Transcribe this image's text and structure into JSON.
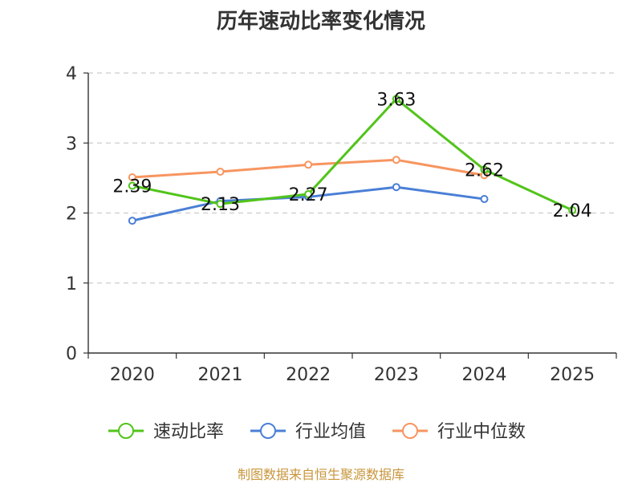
{
  "chart_data": {
    "type": "line",
    "title": "历年速动比率变化情况",
    "categories": [
      "2020",
      "2021",
      "2022",
      "2023",
      "2024",
      "2025"
    ],
    "ylim": [
      0,
      4
    ],
    "yticks": [
      0,
      1,
      2,
      3,
      4
    ],
    "grid": true,
    "legend_position": "bottom",
    "series": [
      {
        "name": "速动比率",
        "color": "#52c41a",
        "values": [
          2.39,
          2.13,
          2.27,
          3.63,
          2.62,
          2.04
        ],
        "labels": [
          "2.39",
          "2.13",
          "2.27",
          "3.63",
          "2.62",
          "2.04"
        ]
      },
      {
        "name": "行业均值",
        "color": "#4a7fd6",
        "values": [
          1.89,
          2.17,
          2.23,
          2.37,
          2.2,
          null
        ]
      },
      {
        "name": "行业中位数",
        "color": "#f79560",
        "values": [
          2.51,
          2.59,
          2.69,
          2.76,
          2.54,
          null
        ]
      }
    ]
  },
  "source": "制图数据来自恒生聚源数据库"
}
